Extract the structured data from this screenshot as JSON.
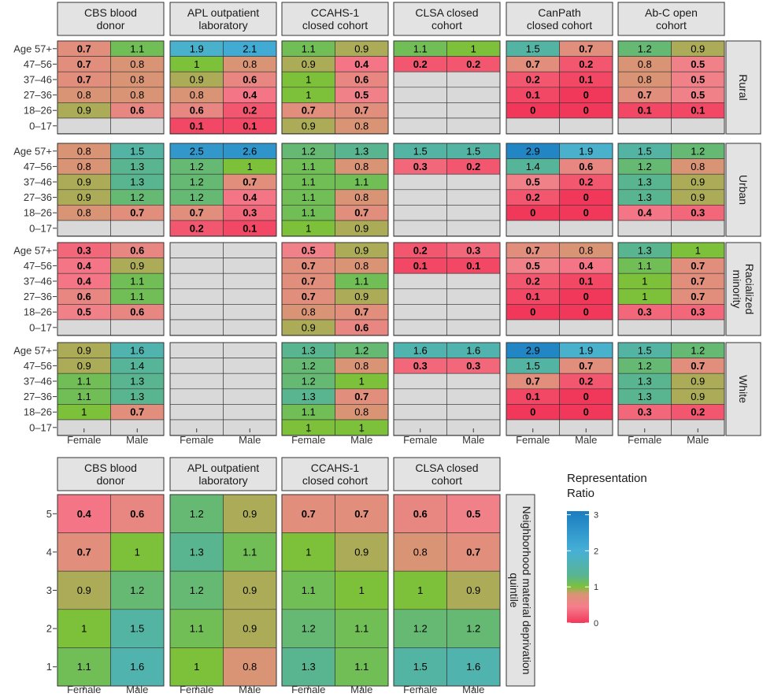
{
  "chart_data": [
    {
      "type": "heatmap",
      "facets_x": [
        "CBS blood donor",
        "APL outpatient laboratory",
        "CCAHS-1 closed cohort",
        "CLSA closed cohort",
        "CanPath closed cohort",
        "Ab-C open cohort"
      ],
      "facets_y": [
        "Rural",
        "Urban",
        "Racialized minority",
        "White"
      ],
      "x_categories": [
        "Female",
        "Male"
      ],
      "y_categories": [
        "Age 57+",
        "47–56",
        "37–46",
        "27–36",
        "18–26",
        "0–17"
      ],
      "cells": {
        "Rural": [
          [
            [
              "0.7",
              "1.1"
            ],
            [
              "0.7",
              "0.8"
            ],
            [
              "0.7",
              "0.8"
            ],
            [
              "0.8",
              "0.8"
            ],
            [
              "0.9",
              "0.6"
            ],
            [
              null,
              null
            ]
          ],
          [
            [
              "1.9",
              "2.1"
            ],
            [
              "1",
              "0.8"
            ],
            [
              "0.9",
              "0.6"
            ],
            [
              "0.8",
              "0.4"
            ],
            [
              "0.6",
              "0.2"
            ],
            [
              "0.1",
              "0.1"
            ]
          ],
          [
            [
              "1.1",
              "0.9"
            ],
            [
              "0.9",
              "0.4"
            ],
            [
              "1",
              "0.6"
            ],
            [
              "1",
              "0.5"
            ],
            [
              "0.7",
              "0.7"
            ],
            [
              "0.9",
              "0.8"
            ]
          ],
          [
            [
              "1.1",
              "1"
            ],
            [
              "0.2",
              "0.2"
            ],
            [
              null,
              null
            ],
            [
              null,
              null
            ],
            [
              null,
              null
            ],
            [
              null,
              null
            ]
          ],
          [
            [
              "1.5",
              "0.7"
            ],
            [
              "0.7",
              "0.2"
            ],
            [
              "0.2",
              "0.1"
            ],
            [
              "0.1",
              "0"
            ],
            [
              "0",
              "0"
            ],
            [
              null,
              null
            ]
          ],
          [
            [
              "1.2",
              "0.9"
            ],
            [
              "0.8",
              "0.5"
            ],
            [
              "0.8",
              "0.5"
            ],
            [
              "0.7",
              "0.5"
            ],
            [
              "0.1",
              "0.1"
            ],
            [
              null,
              null
            ]
          ]
        ],
        "Urban": [
          [
            [
              "0.8",
              "1.5"
            ],
            [
              "0.8",
              "1.3"
            ],
            [
              "0.9",
              "1.3"
            ],
            [
              "0.9",
              "1.2"
            ],
            [
              "0.8",
              "0.7"
            ],
            [
              null,
              null
            ]
          ],
          [
            [
              "2.5",
              "2.6"
            ],
            [
              "1.2",
              "1"
            ],
            [
              "1.2",
              "0.7"
            ],
            [
              "1.2",
              "0.4"
            ],
            [
              "0.7",
              "0.3"
            ],
            [
              "0.2",
              "0.1"
            ]
          ],
          [
            [
              "1.2",
              "1.3"
            ],
            [
              "1.1",
              "0.8"
            ],
            [
              "1.1",
              "1.1"
            ],
            [
              "1.1",
              "0.8"
            ],
            [
              "1.1",
              "0.7"
            ],
            [
              "1",
              "0.9"
            ]
          ],
          [
            [
              "1.5",
              "1.5"
            ],
            [
              "0.3",
              "0.2"
            ],
            [
              null,
              null
            ],
            [
              null,
              null
            ],
            [
              null,
              null
            ],
            [
              null,
              null
            ]
          ],
          [
            [
              "2.9",
              "1.9"
            ],
            [
              "1.4",
              "0.6"
            ],
            [
              "0.5",
              "0.2"
            ],
            [
              "0.2",
              "0"
            ],
            [
              "0",
              "0"
            ],
            [
              null,
              null
            ]
          ],
          [
            [
              "1.5",
              "1.2"
            ],
            [
              "1.2",
              "0.8"
            ],
            [
              "1.3",
              "0.9"
            ],
            [
              "1.3",
              "0.9"
            ],
            [
              "0.4",
              "0.3"
            ],
            [
              null,
              null
            ]
          ]
        ],
        "Racialized minority": [
          [
            [
              "0.3",
              "0.6"
            ],
            [
              "0.4",
              "0.9"
            ],
            [
              "0.4",
              "1.1"
            ],
            [
              "0.6",
              "1.1"
            ],
            [
              "0.5",
              "0.6"
            ],
            [
              null,
              null
            ]
          ],
          [
            [
              null,
              null
            ],
            [
              null,
              null
            ],
            [
              null,
              null
            ],
            [
              null,
              null
            ],
            [
              null,
              null
            ],
            [
              null,
              null
            ]
          ],
          [
            [
              "0.5",
              "0.9"
            ],
            [
              "0.7",
              "0.8"
            ],
            [
              "0.7",
              "1.1"
            ],
            [
              "0.7",
              "0.9"
            ],
            [
              "0.8",
              "0.7"
            ],
            [
              "0.9",
              "0.6"
            ]
          ],
          [
            [
              "0.2",
              "0.3"
            ],
            [
              "0.1",
              "0.1"
            ],
            [
              null,
              null
            ],
            [
              null,
              null
            ],
            [
              null,
              null
            ],
            [
              null,
              null
            ]
          ],
          [
            [
              "0.7",
              "0.8"
            ],
            [
              "0.5",
              "0.4"
            ],
            [
              "0.2",
              "0.1"
            ],
            [
              "0.1",
              "0"
            ],
            [
              "0",
              "0"
            ],
            [
              null,
              null
            ]
          ],
          [
            [
              "1.3",
              "1"
            ],
            [
              "1.1",
              "0.7"
            ],
            [
              "1",
              "0.7"
            ],
            [
              "1",
              "0.7"
            ],
            [
              "0.3",
              "0.3"
            ],
            [
              null,
              null
            ]
          ]
        ],
        "White": [
          [
            [
              "0.9",
              "1.6"
            ],
            [
              "0.9",
              "1.4"
            ],
            [
              "1.1",
              "1.3"
            ],
            [
              "1.1",
              "1.3"
            ],
            [
              "1",
              "0.7"
            ],
            [
              null,
              null
            ]
          ],
          [
            [
              null,
              null
            ],
            [
              null,
              null
            ],
            [
              null,
              null
            ],
            [
              null,
              null
            ],
            [
              null,
              null
            ],
            [
              null,
              null
            ]
          ],
          [
            [
              "1.3",
              "1.2"
            ],
            [
              "1.2",
              "0.8"
            ],
            [
              "1.2",
              "1"
            ],
            [
              "1.3",
              "0.7"
            ],
            [
              "1.1",
              "0.8"
            ],
            [
              "1",
              "1"
            ]
          ],
          [
            [
              "1.6",
              "1.6"
            ],
            [
              "0.3",
              "0.3"
            ],
            [
              null,
              null
            ],
            [
              null,
              null
            ],
            [
              null,
              null
            ],
            [
              null,
              null
            ]
          ],
          [
            [
              "2.9",
              "1.9"
            ],
            [
              "1.5",
              "0.7"
            ],
            [
              "0.7",
              "0.2"
            ],
            [
              "0.1",
              "0"
            ],
            [
              "0",
              "0"
            ],
            [
              null,
              null
            ]
          ],
          [
            [
              "1.5",
              "1.2"
            ],
            [
              "1.2",
              "0.7"
            ],
            [
              "1.3",
              "0.9"
            ],
            [
              "1.3",
              "0.9"
            ],
            [
              "0.3",
              "0.2"
            ],
            [
              null,
              null
            ]
          ]
        ]
      },
      "bold_rule": "value < 0.8 rendered in bold (lowest-ratio cells are bolded)"
    },
    {
      "type": "heatmap",
      "facets_x": [
        "CBS blood donor",
        "APL outpatient laboratory",
        "CCAHS-1 closed cohort",
        "CLSA closed cohort"
      ],
      "row_facet": "Neighborhood material deprivation quintile",
      "x_categories": [
        "Female",
        "Male"
      ],
      "y_categories": [
        "5",
        "4",
        "3",
        "2",
        "1"
      ],
      "cells": [
        [
          [
            "0.4",
            "0.6"
          ],
          [
            "0.7",
            "1"
          ],
          [
            "0.9",
            "1.2"
          ],
          [
            "1",
            "1.5"
          ],
          [
            "1.1",
            "1.6"
          ]
        ],
        [
          [
            "1.2",
            "0.9"
          ],
          [
            "1.3",
            "1.1"
          ],
          [
            "1.2",
            "0.9"
          ],
          [
            "1.1",
            "0.9"
          ],
          [
            "1",
            "0.8"
          ]
        ],
        [
          [
            "0.7",
            "0.7"
          ],
          [
            "1",
            "0.9"
          ],
          [
            "1.1",
            "1"
          ],
          [
            "1.2",
            "1.1"
          ],
          [
            "1.3",
            "1.1"
          ]
        ],
        [
          [
            "0.6",
            "0.5"
          ],
          [
            "0.8",
            "0.7"
          ],
          [
            "1",
            "0.9"
          ],
          [
            "1.2",
            "1.2"
          ],
          [
            "1.5",
            "1.6"
          ]
        ]
      ]
    }
  ],
  "legend": {
    "title_line1": "Representation",
    "title_line2": "Ratio",
    "ticks": [
      "3",
      "2",
      "1",
      "0"
    ],
    "scale_min": 0,
    "scale_mid": 1,
    "scale_max": 3.1,
    "colors": {
      "low": "#f2385a",
      "low_mid": "#f47e8c",
      "mid_low": "#d99475",
      "mid": "#7dc13a",
      "mid_high": "#59b58f",
      "high": "#46b0d6",
      "max": "#1a7cc0"
    }
  },
  "styles": {
    "strip_fill": "#e3e3e3",
    "na_fill": "#d9d9d9",
    "border": "#333333"
  }
}
